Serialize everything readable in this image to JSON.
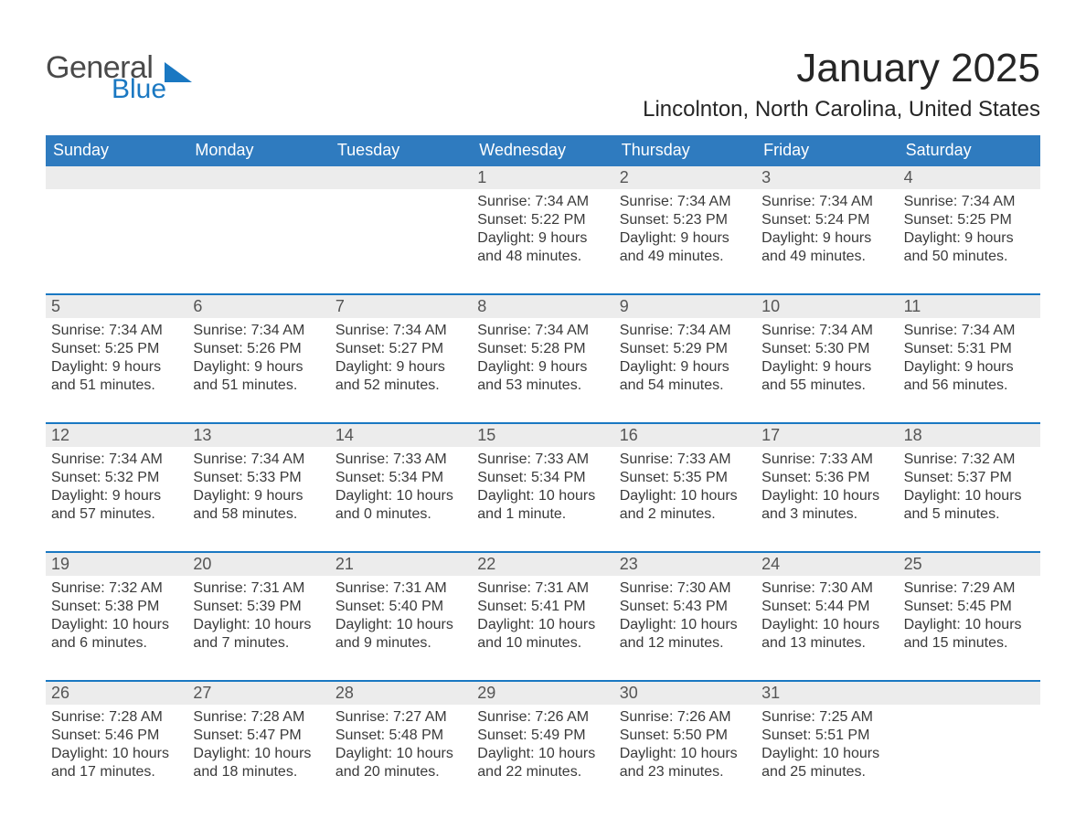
{
  "logo": {
    "general": "General",
    "blue": "Blue",
    "tri_color": "#1a78c2"
  },
  "title": "January 2025",
  "location": "Lincolnton, North Carolina, United States",
  "colors": {
    "header_blue": "#2f7bbf",
    "accent_blue": "#1a78c2",
    "row_bg": "#ececec",
    "page_bg": "#ffffff",
    "text_dark": "#262626"
  },
  "typography": {
    "title_fontsize_pt": 33,
    "location_fontsize_pt": 18,
    "dow_fontsize_pt": 14,
    "daynum_fontsize_pt": 14,
    "body_fontsize_pt": 12,
    "font_family": "Arial"
  },
  "dow": [
    "Sunday",
    "Monday",
    "Tuesday",
    "Wednesday",
    "Thursday",
    "Friday",
    "Saturday"
  ],
  "leading_blanks": 3,
  "days": [
    {
      "n": 1,
      "sunrise": "7:34 AM",
      "sunset": "5:22 PM",
      "daylight": "9 hours and 48 minutes."
    },
    {
      "n": 2,
      "sunrise": "7:34 AM",
      "sunset": "5:23 PM",
      "daylight": "9 hours and 49 minutes."
    },
    {
      "n": 3,
      "sunrise": "7:34 AM",
      "sunset": "5:24 PM",
      "daylight": "9 hours and 49 minutes."
    },
    {
      "n": 4,
      "sunrise": "7:34 AM",
      "sunset": "5:25 PM",
      "daylight": "9 hours and 50 minutes."
    },
    {
      "n": 5,
      "sunrise": "7:34 AM",
      "sunset": "5:25 PM",
      "daylight": "9 hours and 51 minutes."
    },
    {
      "n": 6,
      "sunrise": "7:34 AM",
      "sunset": "5:26 PM",
      "daylight": "9 hours and 51 minutes."
    },
    {
      "n": 7,
      "sunrise": "7:34 AM",
      "sunset": "5:27 PM",
      "daylight": "9 hours and 52 minutes."
    },
    {
      "n": 8,
      "sunrise": "7:34 AM",
      "sunset": "5:28 PM",
      "daylight": "9 hours and 53 minutes."
    },
    {
      "n": 9,
      "sunrise": "7:34 AM",
      "sunset": "5:29 PM",
      "daylight": "9 hours and 54 minutes."
    },
    {
      "n": 10,
      "sunrise": "7:34 AM",
      "sunset": "5:30 PM",
      "daylight": "9 hours and 55 minutes."
    },
    {
      "n": 11,
      "sunrise": "7:34 AM",
      "sunset": "5:31 PM",
      "daylight": "9 hours and 56 minutes."
    },
    {
      "n": 12,
      "sunrise": "7:34 AM",
      "sunset": "5:32 PM",
      "daylight": "9 hours and 57 minutes."
    },
    {
      "n": 13,
      "sunrise": "7:34 AM",
      "sunset": "5:33 PM",
      "daylight": "9 hours and 58 minutes."
    },
    {
      "n": 14,
      "sunrise": "7:33 AM",
      "sunset": "5:34 PM",
      "daylight": "10 hours and 0 minutes."
    },
    {
      "n": 15,
      "sunrise": "7:33 AM",
      "sunset": "5:34 PM",
      "daylight": "10 hours and 1 minute."
    },
    {
      "n": 16,
      "sunrise": "7:33 AM",
      "sunset": "5:35 PM",
      "daylight": "10 hours and 2 minutes."
    },
    {
      "n": 17,
      "sunrise": "7:33 AM",
      "sunset": "5:36 PM",
      "daylight": "10 hours and 3 minutes."
    },
    {
      "n": 18,
      "sunrise": "7:32 AM",
      "sunset": "5:37 PM",
      "daylight": "10 hours and 5 minutes."
    },
    {
      "n": 19,
      "sunrise": "7:32 AM",
      "sunset": "5:38 PM",
      "daylight": "10 hours and 6 minutes."
    },
    {
      "n": 20,
      "sunrise": "7:31 AM",
      "sunset": "5:39 PM",
      "daylight": "10 hours and 7 minutes."
    },
    {
      "n": 21,
      "sunrise": "7:31 AM",
      "sunset": "5:40 PM",
      "daylight": "10 hours and 9 minutes."
    },
    {
      "n": 22,
      "sunrise": "7:31 AM",
      "sunset": "5:41 PM",
      "daylight": "10 hours and 10 minutes."
    },
    {
      "n": 23,
      "sunrise": "7:30 AM",
      "sunset": "5:43 PM",
      "daylight": "10 hours and 12 minutes."
    },
    {
      "n": 24,
      "sunrise": "7:30 AM",
      "sunset": "5:44 PM",
      "daylight": "10 hours and 13 minutes."
    },
    {
      "n": 25,
      "sunrise": "7:29 AM",
      "sunset": "5:45 PM",
      "daylight": "10 hours and 15 minutes."
    },
    {
      "n": 26,
      "sunrise": "7:28 AM",
      "sunset": "5:46 PM",
      "daylight": "10 hours and 17 minutes."
    },
    {
      "n": 27,
      "sunrise": "7:28 AM",
      "sunset": "5:47 PM",
      "daylight": "10 hours and 18 minutes."
    },
    {
      "n": 28,
      "sunrise": "7:27 AM",
      "sunset": "5:48 PM",
      "daylight": "10 hours and 20 minutes."
    },
    {
      "n": 29,
      "sunrise": "7:26 AM",
      "sunset": "5:49 PM",
      "daylight": "10 hours and 22 minutes."
    },
    {
      "n": 30,
      "sunrise": "7:26 AM",
      "sunset": "5:50 PM",
      "daylight": "10 hours and 23 minutes."
    },
    {
      "n": 31,
      "sunrise": "7:25 AM",
      "sunset": "5:51 PM",
      "daylight": "10 hours and 25 minutes."
    }
  ],
  "labels": {
    "sunrise": "Sunrise: ",
    "sunset": "Sunset: ",
    "daylight": "Daylight: "
  }
}
